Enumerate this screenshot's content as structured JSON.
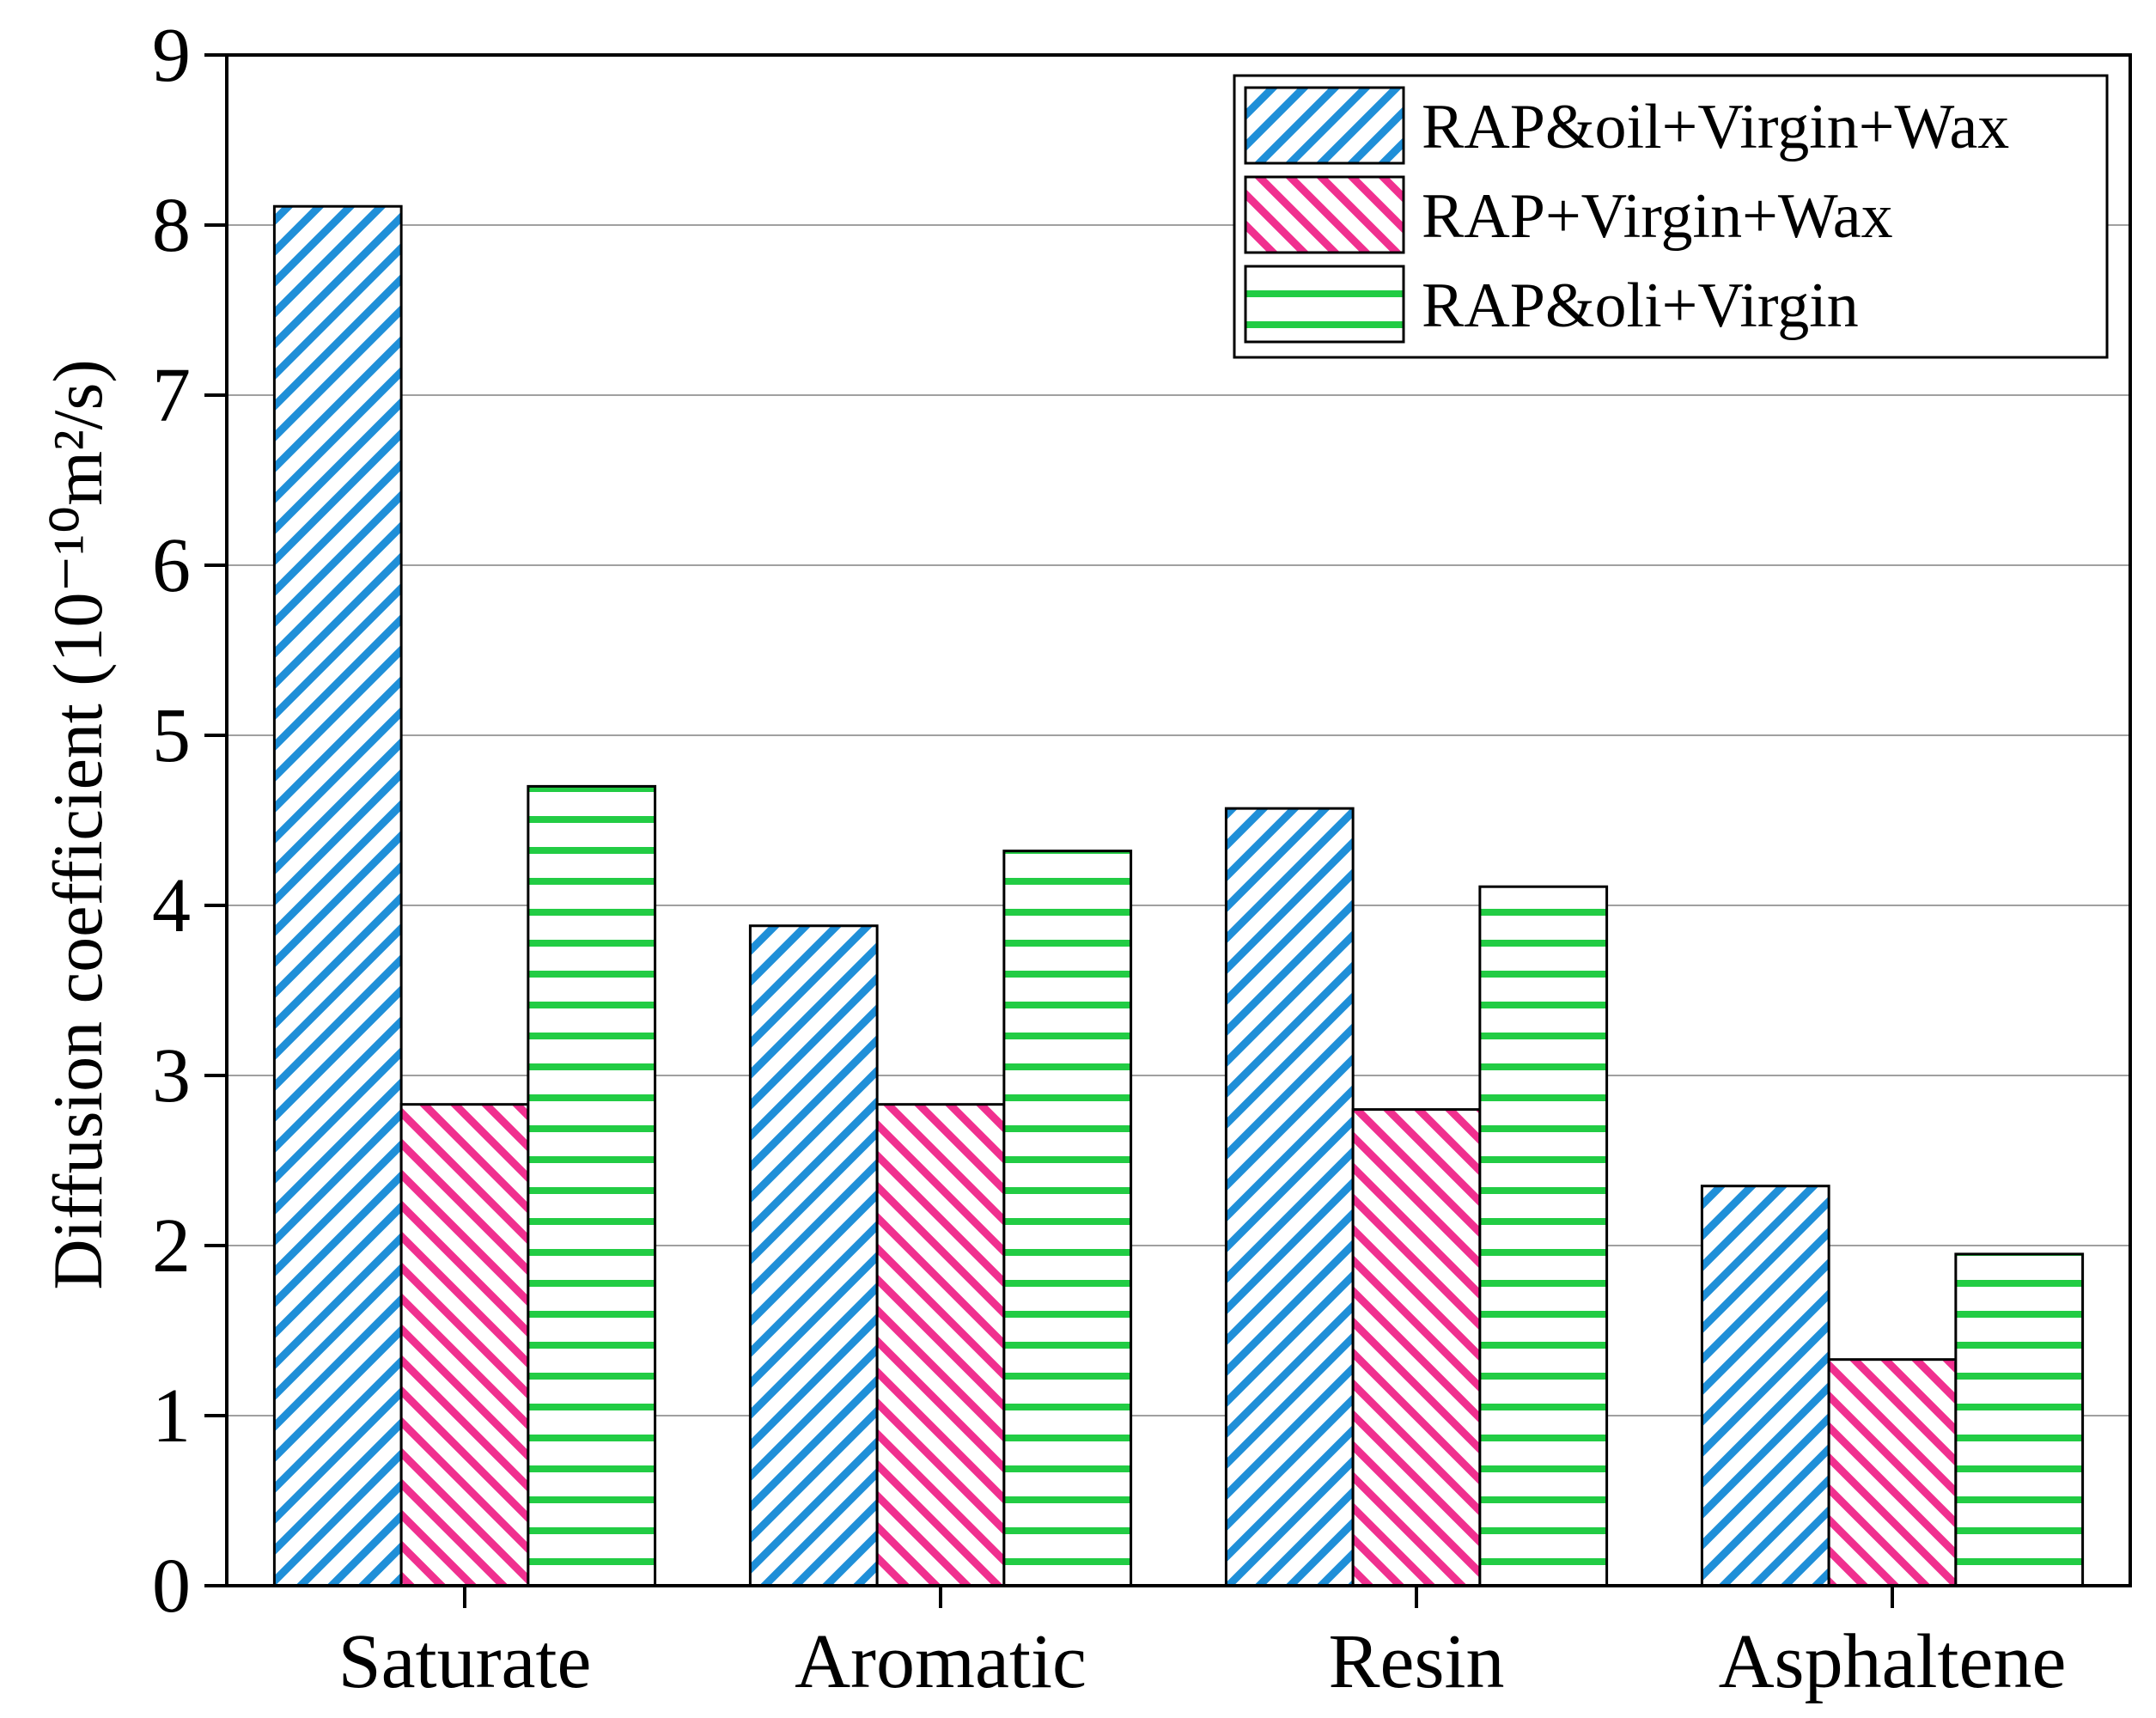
{
  "chart_data": {
    "type": "bar",
    "y_label": "Diffusion coefficient (10⁻¹⁰m²/s)",
    "categories": [
      "Saturate",
      "Aromatic",
      "Resin",
      "Asphaltene"
    ],
    "series": [
      {
        "name": "RAP&oil+Virgin+Wax",
        "color": "#1f8fd8",
        "hatch": "diagonal-up",
        "values": [
          8.11,
          3.88,
          4.57,
          2.35
        ]
      },
      {
        "name": "RAP+Virgin+Wax",
        "color": "#f0308f",
        "hatch": "diagonal-down",
        "values": [
          2.83,
          2.83,
          2.8,
          1.33
        ]
      },
      {
        "name": "RAP&oli+Virgin",
        "color": "#22cc44",
        "hatch": "horizontal",
        "values": [
          4.7,
          4.32,
          4.11,
          1.95
        ]
      }
    ],
    "ylim": [
      0,
      9
    ],
    "yticks": [
      0,
      1,
      2,
      3,
      4,
      5,
      6,
      7,
      8,
      9
    ],
    "grid": true,
    "legend": "top-right"
  }
}
